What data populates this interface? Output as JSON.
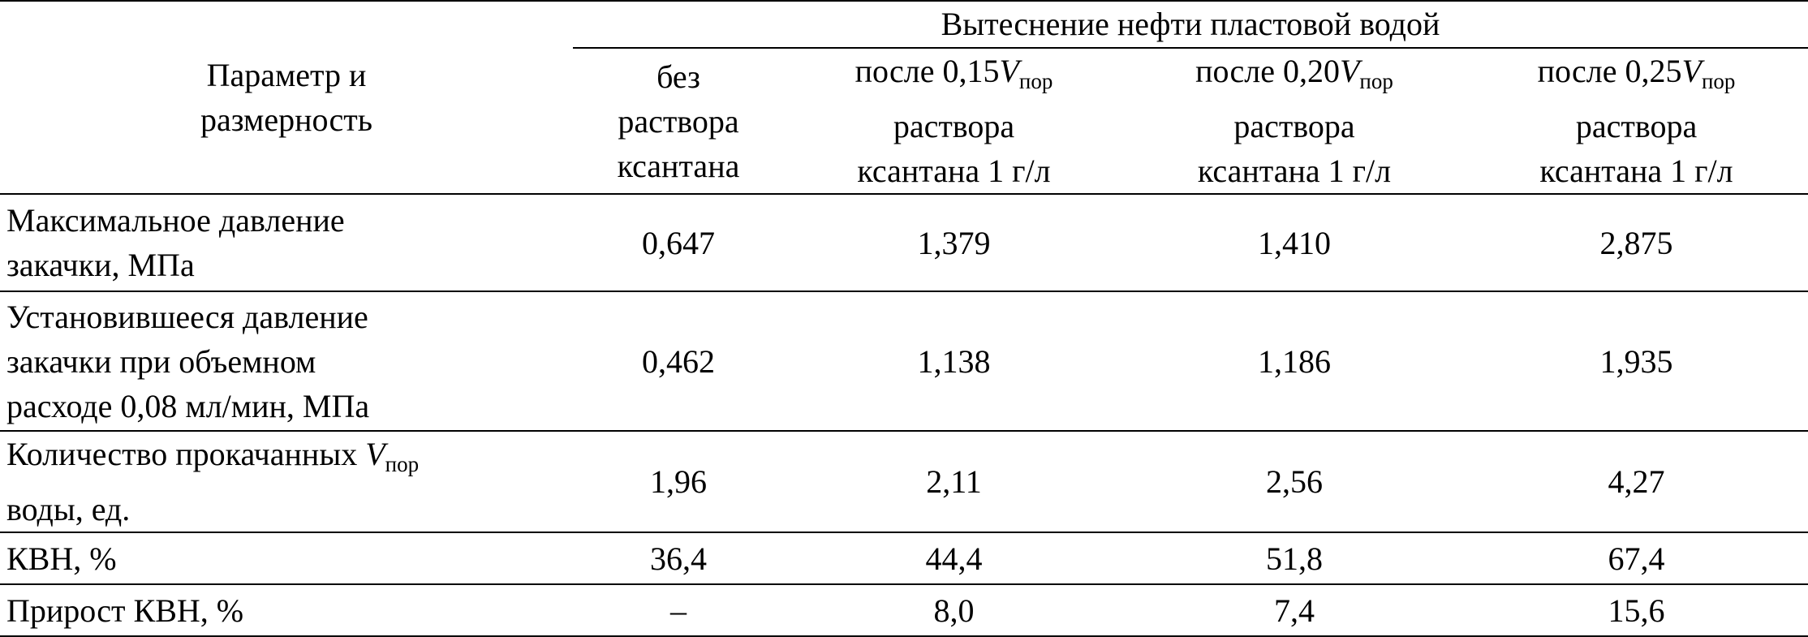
{
  "table": {
    "header": {
      "param": [
        [
          "Параметр и"
        ],
        [
          "размерность"
        ]
      ],
      "group": "Вытеснение нефти пластовой водой",
      "columns": [
        [
          [
            "без"
          ],
          [
            "раствора"
          ],
          [
            "ксантана"
          ]
        ],
        [
          [
            "после 0,15",
            {
              "text": "V",
              "style": "italic"
            },
            {
              "text": "пор",
              "style": "sub"
            }
          ],
          [
            "раствора"
          ],
          [
            "ксантана 1 г/л"
          ]
        ],
        [
          [
            "после 0,20",
            {
              "text": "V",
              "style": "italic"
            },
            {
              "text": "пор",
              "style": "sub"
            }
          ],
          [
            "раствора"
          ],
          [
            "ксантана 1 г/л"
          ]
        ],
        [
          [
            "после 0,25",
            {
              "text": "V",
              "style": "italic"
            },
            {
              "text": "пор",
              "style": "sub"
            }
          ],
          [
            "раствора"
          ],
          [
            "ксантана 1 г/л"
          ]
        ]
      ]
    },
    "rows": [
      {
        "param": [
          [
            "Максимальное давление"
          ],
          [
            "закачки, МПа"
          ]
        ],
        "values": [
          "0,647",
          "1,379",
          "1,410",
          "2,875"
        ]
      },
      {
        "param": [
          [
            "Установившееся давление"
          ],
          [
            "закачки при объемном"
          ],
          [
            "расходе 0,08 мл/мин, МПа"
          ]
        ],
        "values": [
          "0,462",
          "1,138",
          "1,186",
          "1,935"
        ]
      },
      {
        "param": [
          [
            "Количество прокачанных ",
            {
              "text": "V",
              "style": "italic"
            },
            {
              "text": "пор",
              "style": "sub"
            }
          ],
          [
            "воды, ед."
          ]
        ],
        "values": [
          "1,96",
          "2,11",
          "2,56",
          "4,27"
        ]
      },
      {
        "param": [
          [
            "КВН, %"
          ]
        ],
        "values": [
          "36,4",
          "44,4",
          "51,8",
          "67,4"
        ]
      },
      {
        "param": [
          [
            "Прирост КВН, %"
          ]
        ],
        "values": [
          "–",
          "8,0",
          "7,4",
          "15,6"
        ]
      }
    ]
  }
}
